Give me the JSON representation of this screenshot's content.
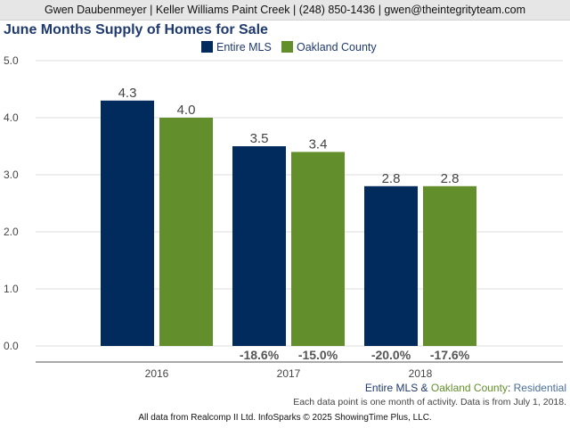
{
  "header": {
    "contact": "Gwen Daubenmeyer | Keller Williams Paint Creek | (248) 850-1436 | gwen@theintegrityteam.com"
  },
  "chart_data": {
    "type": "bar",
    "title": "June Months Supply of Homes for Sale",
    "categories": [
      "2016",
      "2017",
      "2018"
    ],
    "series": [
      {
        "name": "Entire MLS",
        "color": "#002b5c",
        "values": [
          4.3,
          3.5,
          2.8
        ],
        "value_labels": [
          "4.3",
          "3.5",
          "2.8"
        ],
        "change_labels": [
          "",
          "-18.6%",
          "-20.0%"
        ]
      },
      {
        "name": "Oakland County",
        "color": "#628f2b",
        "values": [
          4.0,
          3.4,
          2.8
        ],
        "value_labels": [
          "4.0",
          "3.4",
          "2.8"
        ],
        "change_labels": [
          "",
          "-15.0%",
          "-17.6%"
        ]
      }
    ],
    "y_ticks": [
      "0.0",
      "1.0",
      "2.0",
      "3.0",
      "4.0",
      "5.0"
    ],
    "ylim": [
      0,
      5
    ],
    "grid": true,
    "legend_position": "top-center"
  },
  "footer": {
    "series_entire": "Entire MLS",
    "series_amp": " & ",
    "series_oakland": "Oakland County",
    "series_colon": ": ",
    "series_type": "Residential",
    "note": "Each data point is one month of activity. Data is from July 1, 2018.",
    "source": "All data from Realcomp II Ltd. InfoSparks © 2025 ShowingTime Plus, LLC."
  },
  "colors": {
    "title": "#1f3a6e",
    "footer_entire": "#1f3a6e",
    "footer_oakland": "#628f2b",
    "footer_type": "#4a6f9a"
  }
}
